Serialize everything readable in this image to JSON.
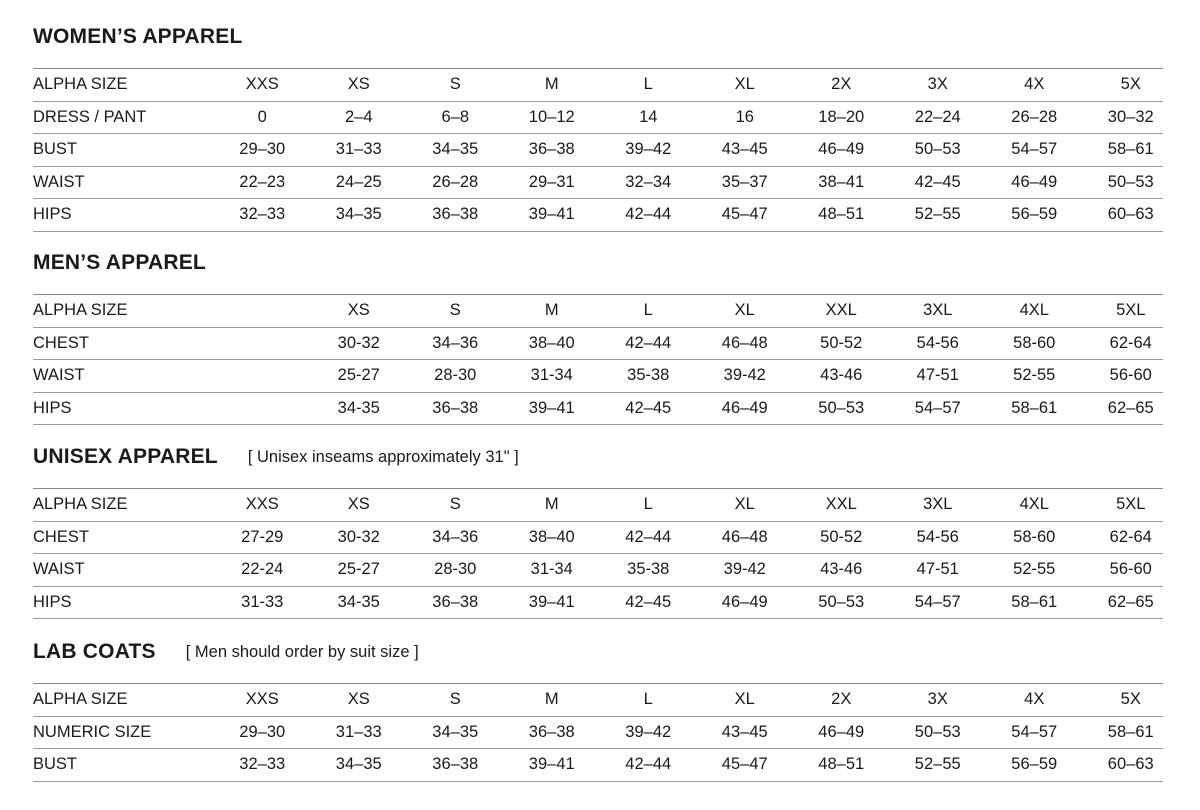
{
  "sections": [
    {
      "title": "WOMEN’S APPAREL",
      "note": "",
      "rows": [
        {
          "label": "ALPHA SIZE",
          "cells": [
            "XXS",
            "XS",
            "S",
            "M",
            "L",
            "XL",
            "2X",
            "3X",
            "4X",
            "5X"
          ]
        },
        {
          "label": "DRESS / PANT",
          "cells": [
            "0",
            "2–4",
            "6–8",
            "10–12",
            "14",
            "16",
            "18–20",
            "22–24",
            "26–28",
            "30–32"
          ]
        },
        {
          "label": "BUST",
          "cells": [
            "29–30",
            "31–33",
            "34–35",
            "36–38",
            "39–42",
            "43–45",
            "46–49",
            "50–53",
            "54–57",
            "58–61"
          ]
        },
        {
          "label": "WAIST",
          "cells": [
            "22–23",
            "24–25",
            "26–28",
            "29–31",
            "32–34",
            "35–37",
            "38–41",
            "42–45",
            "46–49",
            "50–53"
          ]
        },
        {
          "label": "HIPS",
          "cells": [
            "32–33",
            "34–35",
            "36–38",
            "39–41",
            "42–44",
            "45–47",
            "48–51",
            "52–55",
            "56–59",
            "60–63"
          ]
        }
      ]
    },
    {
      "title": "MEN’S APPAREL",
      "note": "",
      "rows": [
        {
          "label": "ALPHA SIZE",
          "cells": [
            "",
            "XS",
            "S",
            "M",
            "L",
            "XL",
            "XXL",
            "3XL",
            "4XL",
            "5XL"
          ]
        },
        {
          "label": "CHEST",
          "cells": [
            "",
            "30-32",
            "34–36",
            "38–40",
            "42–44",
            "46–48",
            "50-52",
            "54-56",
            "58-60",
            "62-64"
          ]
        },
        {
          "label": "WAIST",
          "cells": [
            "",
            "25-27",
            "28-30",
            "31-34",
            "35-38",
            "39-42",
            "43-46",
            "47-51",
            "52-55",
            "56-60"
          ]
        },
        {
          "label": "HIPS",
          "cells": [
            "",
            "34-35",
            "36–38",
            "39–41",
            "42–45",
            "46–49",
            "50–53",
            "54–57",
            "58–61",
            "62–65"
          ]
        }
      ]
    },
    {
      "title": "UNISEX APPAREL",
      "note": "[ Unisex inseams approximately 31\" ]",
      "rows": [
        {
          "label": "ALPHA SIZE",
          "cells": [
            "XXS",
            "XS",
            "S",
            "M",
            "L",
            "XL",
            "XXL",
            "3XL",
            "4XL",
            "5XL"
          ]
        },
        {
          "label": "CHEST",
          "cells": [
            "27-29",
            "30-32",
            "34–36",
            "38–40",
            "42–44",
            "46–48",
            "50-52",
            "54-56",
            "58-60",
            "62-64"
          ]
        },
        {
          "label": "WAIST",
          "cells": [
            "22-24",
            "25-27",
            "28-30",
            "31-34",
            "35-38",
            "39-42",
            "43-46",
            "47-51",
            "52-55",
            "56-60"
          ]
        },
        {
          "label": "HIPS",
          "cells": [
            "31-33",
            "34-35",
            "36–38",
            "39–41",
            "42–45",
            "46–49",
            "50–53",
            "54–57",
            "58–61",
            "62–65"
          ]
        }
      ]
    },
    {
      "title": "LAB COATS",
      "note": "[ Men should order by suit size ]",
      "rows": [
        {
          "label": "ALPHA SIZE",
          "cells": [
            "XXS",
            "XS",
            "S",
            "M",
            "L",
            "XL",
            "2X",
            "3X",
            "4X",
            "5X"
          ]
        },
        {
          "label": "NUMERIC SIZE",
          "cells": [
            "29–30",
            "31–33",
            "34–35",
            "36–38",
            "39–42",
            "43–45",
            "46–49",
            "50–53",
            "54–57",
            "58–61"
          ]
        },
        {
          "label": "BUST",
          "cells": [
            "32–33",
            "34–35",
            "36–38",
            "39–41",
            "42–44",
            "45–47",
            "48–51",
            "52–55",
            "56–59",
            "60–63"
          ]
        }
      ]
    }
  ]
}
